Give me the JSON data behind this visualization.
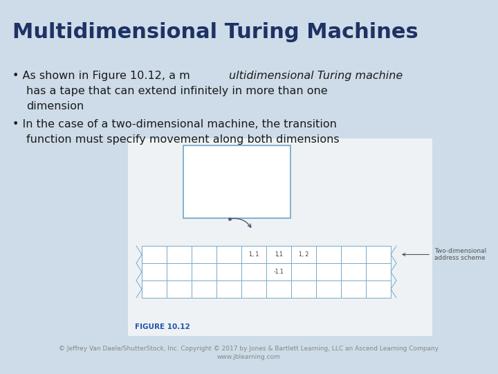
{
  "title": "Multidimensional Turing Machines",
  "title_color": "#1e3264",
  "title_fontsize": 22,
  "bg_color": "#cddce8",
  "bullet_color": "#1a1a1a",
  "bullet_fontsize": 11.5,
  "footer": "© Jeffrey Van Daele/ShutterStock, Inc. Copyright © 2017 by Jones & Bartlett Learning, LLC an Ascend Learning Company\nwww.jblearning.com",
  "footer_color": "#888888",
  "footer_fontsize": 6.5,
  "figure_label": "FIGURE 10.12",
  "figure_label_color": "#2255aa",
  "tape_label": "Two-dimensional\naddress scheme",
  "tape_label_color": "#555555",
  "tape_arrow_color": "#555555",
  "cell_edge_color": "#77aacc",
  "top_box_edge_color": "#77aacc",
  "arrow_color": "#555577",
  "white": "#ffffff",
  "fig_bg": "#f0f4f7"
}
